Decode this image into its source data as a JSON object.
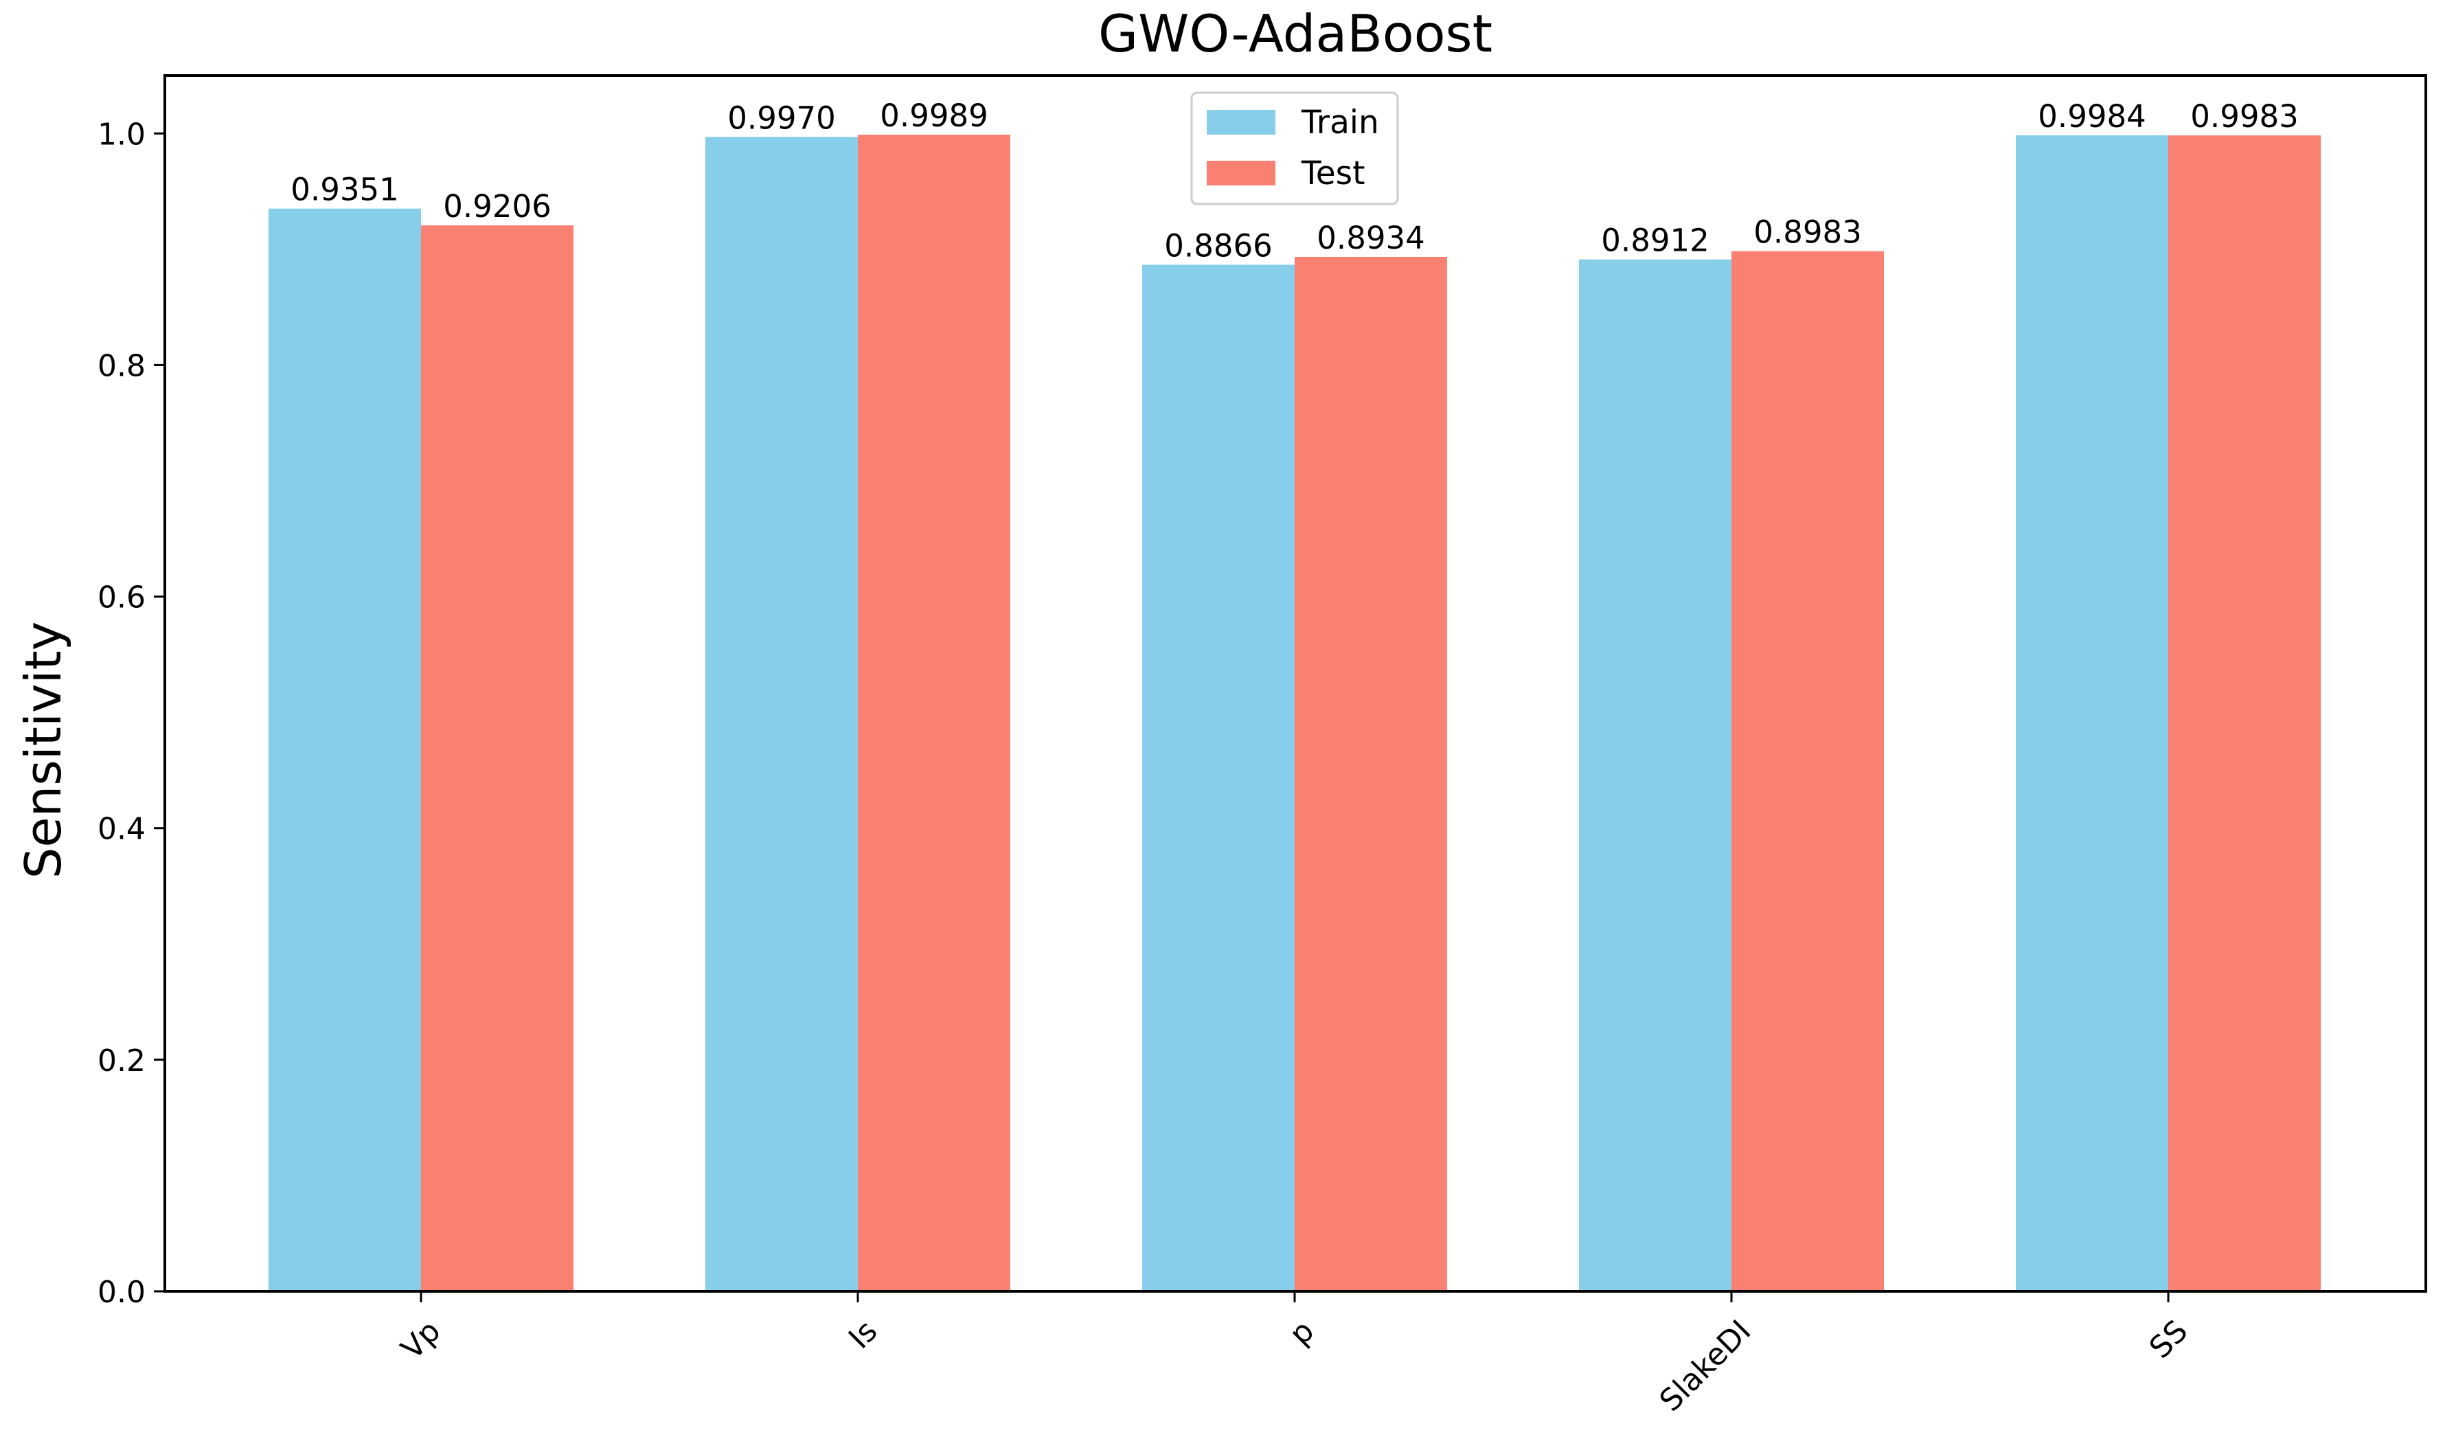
{
  "chart_data": {
    "type": "bar",
    "title": "GWO-AdaBoost",
    "xlabel": "",
    "ylabel": "Sensitivity",
    "categories": [
      "Vp",
      "Is",
      "p",
      "SlakeDI",
      "SS"
    ],
    "series": [
      {
        "name": "Train",
        "color": "#87CEEB",
        "values": [
          0.9351,
          0.997,
          0.8866,
          0.8912,
          0.9984
        ],
        "labels": [
          "0.9351",
          "0.9970",
          "0.8866",
          "0.8912",
          "0.9984"
        ]
      },
      {
        "name": "Test",
        "color": "#FA8072",
        "values": [
          0.9206,
          0.9989,
          0.8934,
          0.8983,
          0.9983
        ],
        "labels": [
          "0.9206",
          "0.9989",
          "0.8934",
          "0.8983",
          "0.9983"
        ]
      }
    ],
    "ylim": [
      0,
      1.05
    ],
    "yticks": [
      0.0,
      0.2,
      0.4,
      0.6,
      0.8,
      1.0
    ],
    "ytick_labels": [
      "0.0",
      "0.2",
      "0.4",
      "0.6",
      "0.8",
      "1.0"
    ],
    "grid": false,
    "legend_position": "top-center",
    "xtick_rotation": -45
  }
}
